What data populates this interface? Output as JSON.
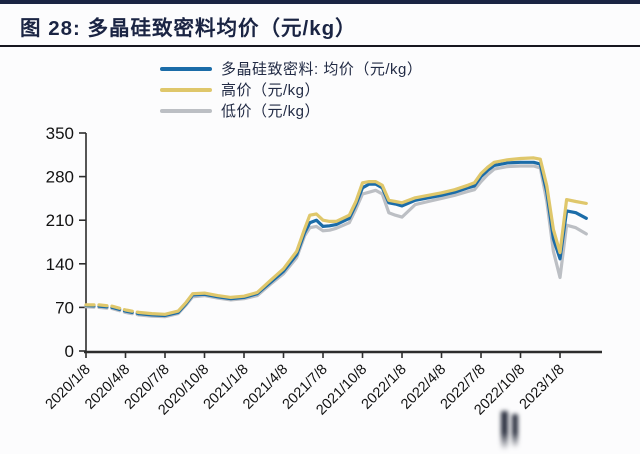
{
  "figure": {
    "title": "图 28: 多晶硅致密料均价（元/kg）"
  },
  "chart_data": {
    "type": "line",
    "title": "图 28: 多晶硅致密料均价（元/kg）",
    "xlabel": "",
    "ylabel": "",
    "ylim": [
      0,
      350
    ],
    "y_ticks": [
      0,
      70,
      140,
      210,
      280,
      350
    ],
    "grid": false,
    "legend_position": "top-left",
    "x_unit": "months since 2020/1/8, quarterly ticks",
    "x_tick_labels": [
      "2020/1/8",
      "2020/4/8",
      "2020/7/8",
      "2020/10/8",
      "2021/1/8",
      "2021/4/8",
      "2021/7/8",
      "2021/10/8",
      "2022/1/8",
      "2022/4/8",
      "2022/7/8",
      "2022/10/8",
      "2023/1/8"
    ],
    "dashed_until_x": 4.5,
    "series": [
      {
        "id": "avg",
        "name": "多晶硅致密料: 均价（元/kg）",
        "color": "#1b6ca8",
        "x": [
          0,
          1,
          2,
          3,
          4,
          5,
          6,
          7,
          7.6,
          8.1,
          9,
          10,
          11,
          12,
          13,
          14,
          15,
          16,
          16.6,
          17,
          17.5,
          18,
          18.5,
          19,
          20,
          20.5,
          21,
          21.5,
          22,
          22.5,
          23,
          23.5,
          24,
          25,
          26,
          27,
          28,
          29,
          29.5,
          30,
          30.5,
          31,
          32,
          33,
          34,
          34.5,
          35,
          35.5,
          36,
          36.5,
          37.2,
          38
        ],
        "values": [
          73,
          72,
          70,
          64,
          60,
          58,
          57,
          62,
          76,
          90,
          91,
          87,
          84,
          86,
          92,
          110,
          128,
          155,
          190,
          206,
          210,
          200,
          201,
          203,
          213,
          235,
          262,
          268,
          268,
          262,
          238,
          236,
          233,
          242,
          246,
          250,
          255,
          262,
          265,
          280,
          290,
          298,
          302,
          303,
          303,
          300,
          255,
          180,
          148,
          225,
          222,
          213
        ]
      },
      {
        "id": "high",
        "name": "高价（元/kg）",
        "color": "#dfc76b",
        "x": [
          0,
          1,
          2,
          3,
          4,
          5,
          6,
          7,
          7.6,
          8.1,
          9,
          10,
          11,
          12,
          13,
          14,
          15,
          16,
          16.6,
          17,
          17.5,
          18,
          18.5,
          19,
          20,
          20.5,
          21,
          21.5,
          22,
          22.5,
          23,
          23.5,
          24,
          25,
          26,
          27,
          28,
          29,
          29.5,
          30,
          30.5,
          31,
          32,
          33,
          34,
          34.5,
          35,
          35.5,
          36,
          36.5,
          37.2,
          38
        ],
        "values": [
          74,
          74,
          72,
          66,
          62,
          60,
          59,
          64,
          78,
          92,
          93,
          89,
          86,
          88,
          94,
          113,
          132,
          160,
          196,
          218,
          220,
          210,
          208,
          208,
          218,
          240,
          270,
          272,
          272,
          266,
          242,
          240,
          238,
          246,
          250,
          254,
          259,
          266,
          270,
          285,
          295,
          303,
          307,
          309,
          310,
          308,
          265,
          195,
          158,
          243,
          240,
          237
        ]
      },
      {
        "id": "low",
        "name": "低价（元/kg）",
        "color": "#bcbfc4",
        "x": [
          0,
          1,
          2,
          3,
          4,
          5,
          6,
          7,
          7.6,
          8.1,
          9,
          10,
          11,
          12,
          13,
          14,
          15,
          16,
          16.6,
          17,
          17.5,
          18,
          18.5,
          19,
          20,
          20.5,
          21,
          21.5,
          22,
          22.5,
          23,
          23.5,
          24,
          25,
          26,
          27,
          28,
          29,
          29.5,
          30,
          30.5,
          31,
          32,
          33,
          34,
          34.5,
          35,
          35.5,
          36,
          36.5,
          37.2,
          38
        ],
        "values": [
          71,
          70,
          68,
          62,
          58,
          56,
          55,
          60,
          74,
          87,
          89,
          85,
          82,
          84,
          89,
          107,
          124,
          150,
          185,
          198,
          200,
          193,
          194,
          197,
          206,
          228,
          252,
          255,
          258,
          252,
          222,
          218,
          215,
          235,
          240,
          245,
          250,
          256,
          259,
          272,
          283,
          292,
          296,
          297,
          297,
          294,
          240,
          160,
          118,
          202,
          198,
          188
        ]
      }
    ]
  }
}
